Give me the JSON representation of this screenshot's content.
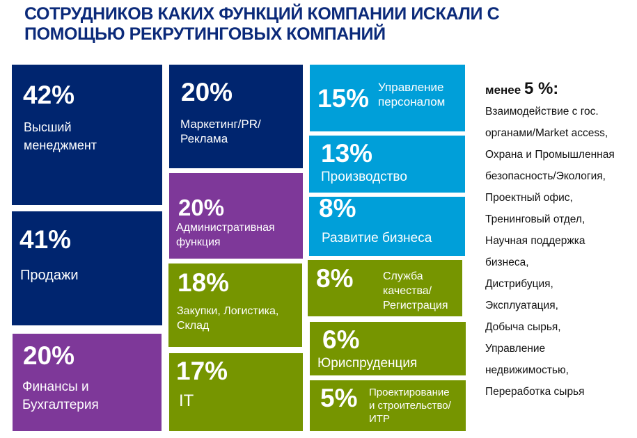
{
  "title_line1": "СОТРУДНИКОВ КАКИХ ФУНКЦИЙ КОМПАНИИ ИСКАЛИ С",
  "title_line2": "ПОМОЩЬЮ РЕКРУТИНГОВЫХ КОМПАНИЙ",
  "colors": {
    "navy": "#00256f",
    "purple": "#7e3899",
    "green": "#769500",
    "cyan": "#009fd9",
    "title": "#0b2a7a"
  },
  "chart_data": {
    "type": "treemap",
    "title": "СОТРУДНИКОВ КАКИХ ФУНКЦИЙ КОМПАНИИ ИСКАЛИ С ПОМОЩЬЮ РЕКРУТИНГОВЫХ КОМПАНИЙ",
    "unit": "%",
    "items": [
      {
        "pct": "42%",
        "value": 42,
        "label1": "Высший",
        "label2": "менеджмент",
        "color": "navy"
      },
      {
        "pct": "41%",
        "value": 41,
        "label1": "Продажи",
        "color": "navy"
      },
      {
        "pct": "20%",
        "value": 20,
        "label1": "Финансы и",
        "label2": "Бухгалтерия",
        "color": "purple"
      },
      {
        "pct": "20%",
        "value": 20,
        "label1": "Маркетинг/PR/",
        "label2": "Реклама",
        "color": "navy"
      },
      {
        "pct": "20%",
        "value": 20,
        "label1": "Административная",
        "label2": "функция",
        "color": "purple"
      },
      {
        "pct": "18%",
        "value": 18,
        "label1": "Закупки, Логистика,",
        "label2": "Склад",
        "color": "green"
      },
      {
        "pct": "17%",
        "value": 17,
        "label1": "IT",
        "color": "green"
      },
      {
        "pct": "15%",
        "value": 15,
        "label1": "Управление",
        "label2": "персоналом",
        "color": "cyan"
      },
      {
        "pct": "13%",
        "value": 13,
        "label1": "Производство",
        "color": "cyan"
      },
      {
        "pct": "8%",
        "value": 8,
        "label1": "Развитие бизнеса",
        "color": "cyan"
      },
      {
        "pct": "8%",
        "value": 8,
        "label1": "Служба",
        "label2": "качества/",
        "label3": "Регистрация",
        "color": "green"
      },
      {
        "pct": "6%",
        "value": 6,
        "label1": "Юриспруденция",
        "color": "green"
      },
      {
        "pct": "5%",
        "value": 5,
        "label1": "Проектирование",
        "label2": "и  строительство/",
        "label3": "ИТР",
        "color": "green"
      }
    ]
  },
  "less_than": {
    "prefix": "менее",
    "value": "5 %:",
    "lines": [
      "Взаимодействие с гос.",
      "органами/Market access,",
      "Охрана и Промышленная",
      "безопасность/Экология,",
      "Проектный офис,",
      "Тренинговый отдел,",
      "Научная поддержка",
      "бизнеса,",
      "Дистрибуция,",
      "Эксплуатация,",
      "Добыча сырья,",
      "Управление",
      "недвижимостью,",
      "Переработка сырья"
    ]
  }
}
